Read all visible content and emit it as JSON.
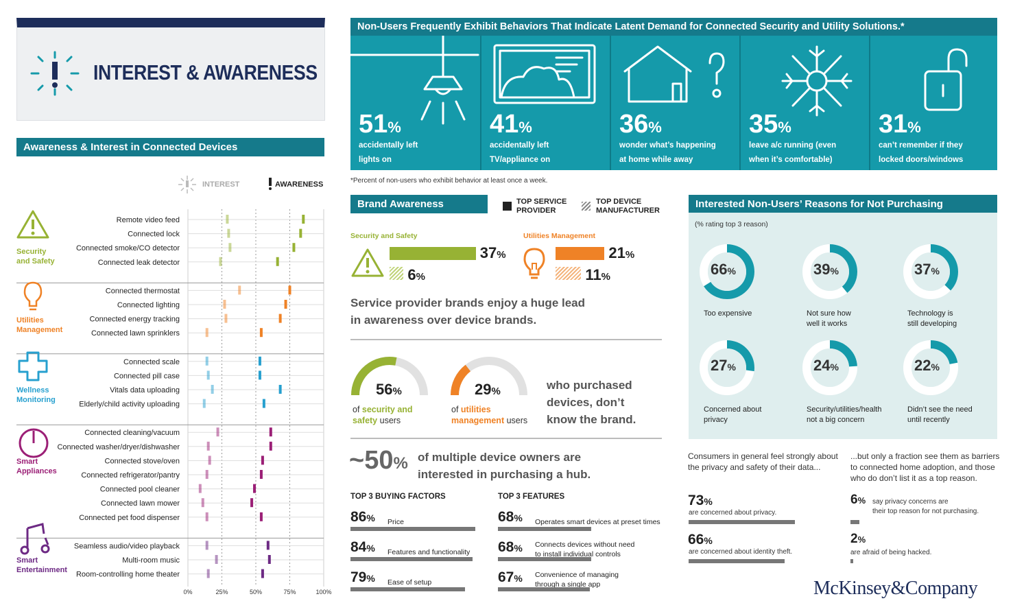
{
  "title": "INTEREST & AWARENESS",
  "left_header": "Awareness & Interest in Connected Devices",
  "legend": {
    "interest": "INTEREST",
    "awareness": "AWARENESS"
  },
  "chart_data": {
    "type": "scatter",
    "xlabel": "",
    "x_ticks": [
      "0%",
      "25%",
      "50%",
      "75%",
      "100%"
    ],
    "xlim": [
      0,
      100
    ],
    "categories": [
      {
        "name": "Security and Safety",
        "color": "#97b234",
        "icon": "warning-icon",
        "devices": [
          {
            "label": "Remote video feed",
            "interest": 29,
            "awareness": 85
          },
          {
            "label": "Connected lock",
            "interest": 30,
            "awareness": 83
          },
          {
            "label": "Connected smoke/CO detector",
            "interest": 31,
            "awareness": 78
          },
          {
            "label": "Connected leak detector",
            "interest": 24,
            "awareness": 66
          }
        ]
      },
      {
        "name": "Utilities Management",
        "color": "#ef8226",
        "icon": "lightbulb-icon",
        "devices": [
          {
            "label": "Connected thermostat",
            "interest": 38,
            "awareness": 75
          },
          {
            "label": "Connected lighting",
            "interest": 27,
            "awareness": 72
          },
          {
            "label": "Connected energy tracking",
            "interest": 28,
            "awareness": 68
          },
          {
            "label": "Connected lawn sprinklers",
            "interest": 14,
            "awareness": 54
          }
        ]
      },
      {
        "name": "Wellness Monitoring",
        "color": "#27a0cf",
        "icon": "medical-cross-icon",
        "devices": [
          {
            "label": "Connected scale",
            "interest": 14,
            "awareness": 53
          },
          {
            "label": "Connected pill case",
            "interest": 15,
            "awareness": 53
          },
          {
            "label": "Vitals data uploading",
            "interest": 18,
            "awareness": 68
          },
          {
            "label": "Elderly/child activity uploading",
            "interest": 12,
            "awareness": 56
          }
        ]
      },
      {
        "name": "Smart Appliances",
        "color": "#9b1f76",
        "icon": "power-icon",
        "devices": [
          {
            "label": "Connected cleaning/vacuum",
            "interest": 22,
            "awareness": 61
          },
          {
            "label": "Connected washer/dryer/dishwasher",
            "interest": 15,
            "awareness": 61
          },
          {
            "label": "Connected stove/oven",
            "interest": 16,
            "awareness": 55
          },
          {
            "label": "Connected refrigerator/pantry",
            "interest": 14,
            "awareness": 54
          },
          {
            "label": "Connected pool cleaner",
            "interest": 9,
            "awareness": 49
          },
          {
            "label": "Connected lawn mower",
            "interest": 11,
            "awareness": 47
          },
          {
            "label": "Connected pet food dispenser",
            "interest": 14,
            "awareness": 54
          }
        ]
      },
      {
        "name": "Smart Entertainment",
        "color": "#6d2a84",
        "icon": "music-note-icon",
        "devices": [
          {
            "label": "Seamless audio/video playback",
            "interest": 14,
            "awareness": 59
          },
          {
            "label": "Multi-room music",
            "interest": 21,
            "awareness": 60
          },
          {
            "label": "Room-controlling home theater",
            "interest": 15,
            "awareness": 55
          }
        ]
      }
    ]
  },
  "cat_labels": [
    [
      "Security",
      "and Safety"
    ],
    [
      "Utilities",
      "Management"
    ],
    [
      "Wellness",
      "Monitoring"
    ],
    [
      "Smart",
      "Appliances"
    ],
    [
      "Smart",
      "Entertainment"
    ]
  ],
  "top_header": "Non-Users Frequently Exhibit Behaviors That Indicate Latent Demand for Connected Security and Utility Solutions.*",
  "behaviors": [
    {
      "num": "51",
      "pct": "%",
      "desc1": "accidentally left",
      "desc2": "lights on",
      "icon": "lamp-icon"
    },
    {
      "num": "41",
      "pct": "%",
      "desc1": "accidentally left",
      "desc2": "TV/appliance on",
      "icon": "tv-icon"
    },
    {
      "num": "36",
      "pct": "%",
      "desc1": "wonder what’s happening",
      "desc2": "at home while away",
      "icon": "house-question-icon"
    },
    {
      "num": "35",
      "pct": "%",
      "desc1": "leave a/c running (even",
      "desc2": "when it’s comfortable)",
      "icon": "snowflake-icon"
    },
    {
      "num": "31",
      "pct": "%",
      "desc1": "can’t remember if they",
      "desc2": "locked doors/windows",
      "icon": "padlock-icon"
    }
  ],
  "footnote": "*Percent of non-users who exhibit behavior at least once a week.",
  "brand": {
    "header": "Brand Awareness",
    "legend_sp": [
      "TOP SERVICE",
      "PROVIDER"
    ],
    "legend_dm": [
      "TOP DEVICE",
      "MANUFACTURER"
    ],
    "security_label": "Security and Safety",
    "utilities_label": "Utilities Management",
    "security_sp": 37,
    "security_dm": 6,
    "utilities_sp": 21,
    "utilities_dm": 11,
    "statement1": "Service provider brands enjoy a huge lead",
    "statement2": "in awareness over device brands.",
    "gauge1": {
      "value": 56,
      "line1_pre": "of ",
      "line1_hl": "security and",
      "line2_hl": "safety",
      "line2_post": " users"
    },
    "gauge2": {
      "value": 29,
      "line1_pre": "of ",
      "line1_hl": "utilities",
      "line2_hl": "management",
      "line2_post": " users"
    },
    "gauge_text": [
      "who purchased",
      "devices, don’t",
      "know the brand."
    ],
    "hub_num": "~50",
    "hub_text1": "of multiple device owners are",
    "hub_text2": "interested in purchasing a hub."
  },
  "buying": {
    "header": "TOP 3 BUYING FACTORS",
    "items": [
      {
        "value": 86,
        "label1": "Price",
        "label2": ""
      },
      {
        "value": 84,
        "label1": "Features and functionality",
        "label2": ""
      },
      {
        "value": 79,
        "label1": "Ease of setup",
        "label2": ""
      }
    ]
  },
  "features": {
    "header": "TOP 3 FEATURES",
    "items": [
      {
        "value": 68,
        "label1": "Operates smart devices at preset times",
        "label2": ""
      },
      {
        "value": 68,
        "label1": "Connects devices without need",
        "label2": "to install individual controls"
      },
      {
        "value": 67,
        "label1": "Convenience of managing",
        "label2": "through a single app"
      }
    ]
  },
  "reasons": {
    "header": "Interested Non-Users’ Reasons for Not Purchasing",
    "subheader": "(% rating top 3 reason)",
    "items": [
      {
        "value": 66,
        "label1": "Too expensive",
        "label2": ""
      },
      {
        "value": 39,
        "label1": "Not sure how",
        "label2": "well it works"
      },
      {
        "value": 37,
        "label1": "Technology is",
        "label2": "still developing"
      },
      {
        "value": 27,
        "label1": "Concerned about",
        "label2": "privacy"
      },
      {
        "value": 24,
        "label1": "Security/utilities/health",
        "label2": "not a big concern"
      },
      {
        "value": 22,
        "label1": "Didn’t see the need",
        "label2": "until recently"
      }
    ]
  },
  "privacy": {
    "left_intro1": "Consumers in general feel strongly about",
    "left_intro2": "the privacy and safety of their data...",
    "right_intro1": "...but only a fraction see them as barriers",
    "right_intro2": "to connected home adoption, and those",
    "right_intro3": "who do don’t list it as a top reason.",
    "left_items": [
      {
        "value": 73,
        "label": "are concerned about privacy."
      },
      {
        "value": 66,
        "label": "are concerned about identity theft."
      }
    ],
    "right_items": [
      {
        "value": 6,
        "label1": "say privacy concerns are",
        "label2": "their top reason for not purchasing."
      },
      {
        "value": 2,
        "label1": "are afraid of being hacked.",
        "label2": ""
      }
    ]
  },
  "logo": "McKinsey&Company",
  "colors": {
    "teal": "#159aaa",
    "dark_teal": "#157a8b",
    "navy": "#1d2d5a",
    "green": "#97b234",
    "orange": "#ef8226"
  }
}
